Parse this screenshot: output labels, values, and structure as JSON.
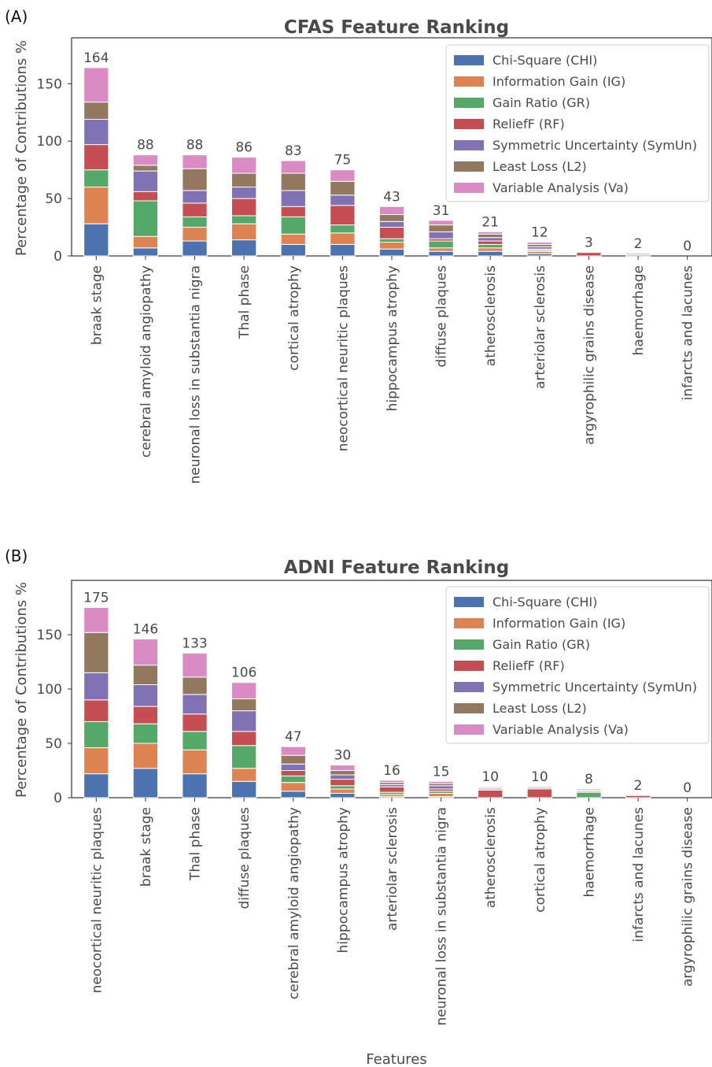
{
  "chart_data": [
    {
      "type": "bar",
      "stacked": true,
      "panel": "(A)",
      "title": "CFAS Feature Ranking",
      "ylabel": "Percentage of Contributions %",
      "xlabel": "",
      "ylim": [
        0,
        190
      ],
      "yticks": [
        0,
        50,
        100,
        150
      ],
      "grid": false,
      "legend_position": "top-right",
      "categories": [
        "braak stage",
        "cerebral amyloid angiopathy",
        "neuronal loss in substantia nigra",
        "Thal phase",
        "cortical atrophy",
        "neocortical neuritic plaques",
        "hippocampus atrophy",
        "diffuse plaques",
        "atherosclerosis",
        "arteriolar sclerosis",
        "argyrophilic grains disease",
        "haemorrhage",
        "infarcts and lacunes"
      ],
      "totals": [
        "164",
        "88",
        "88",
        "86",
        "83",
        "75",
        "43",
        "31",
        "21",
        "12",
        "3",
        "2",
        "0"
      ],
      "series": [
        {
          "name": "Chi-Square (CHI)",
          "color": "#4c72b0",
          "values": [
            28,
            7,
            13,
            14,
            10,
            10,
            6,
            4,
            4,
            2,
            0,
            0,
            0
          ]
        },
        {
          "name": "Information Gain (IG)",
          "color": "#dd8452",
          "values": [
            32,
            10,
            12,
            14,
            9,
            10,
            6,
            3,
            3,
            2,
            0,
            0,
            0
          ]
        },
        {
          "name": "Gain Ratio (GR)",
          "color": "#55a868",
          "values": [
            15,
            31,
            9,
            7,
            15,
            7,
            3,
            6,
            3,
            1,
            0,
            1,
            0
          ]
        },
        {
          "name": "ReliefF (RF)",
          "color": "#c44e52",
          "values": [
            22,
            8,
            12,
            15,
            9,
            17,
            10,
            2,
            3,
            1,
            3,
            0,
            0
          ]
        },
        {
          "name": "Symmetric Uncertainty (SymUn)",
          "color": "#8172b3",
          "values": [
            22,
            18,
            11,
            10,
            14,
            9,
            5,
            6,
            3,
            2,
            0,
            1,
            0
          ]
        },
        {
          "name": "Least Loss (L2)",
          "color": "#937860",
          "values": [
            15,
            5,
            19,
            12,
            15,
            12,
            6,
            6,
            3,
            2,
            0,
            0,
            0
          ]
        },
        {
          "name": "Variable Analysis (Va)",
          "color": "#da8bc3",
          "values": [
            30,
            9,
            12,
            14,
            11,
            10,
            7,
            4,
            2,
            2,
            0,
            0,
            0
          ]
        }
      ]
    },
    {
      "type": "bar",
      "stacked": true,
      "panel": "(B)",
      "title": "ADNI Feature Ranking",
      "ylabel": "Percentage of Contributions %",
      "xlabel": "Features",
      "ylim": [
        0,
        200
      ],
      "yticks": [
        0,
        50,
        100,
        150
      ],
      "grid": false,
      "legend_position": "top-right",
      "categories": [
        "neocortical neuritic plaques",
        "braak stage",
        "Thal phase",
        "diffuse plaques",
        "cerebral amyloid angiopathy",
        "hippocampus atrophy",
        "arteriolar sclerosis",
        "neuronal loss in substantia nigra",
        "atherosclerosis",
        "cortical atrophy",
        "haemorrhage",
        "infarcts and lacunes",
        "argyrophilic grains disease"
      ],
      "totals": [
        "175",
        "146",
        "133",
        "106",
        "47",
        "30",
        "16",
        "15",
        "10",
        "10",
        "8",
        "2",
        "0"
      ],
      "series": [
        {
          "name": "Chi-Square (CHI)",
          "color": "#4c72b0",
          "values": [
            22,
            27,
            22,
            15,
            6,
            4,
            1,
            1,
            0,
            0,
            0,
            0,
            0
          ]
        },
        {
          "name": "Information Gain (IG)",
          "color": "#dd8452",
          "values": [
            24,
            23,
            22,
            12,
            8,
            4,
            2,
            3,
            0,
            0,
            0,
            0,
            0
          ]
        },
        {
          "name": "Gain Ratio (GR)",
          "color": "#55a868",
          "values": [
            24,
            18,
            17,
            21,
            6,
            3,
            2,
            2,
            0,
            0,
            5,
            0,
            0
          ]
        },
        {
          "name": "ReliefF (RF)",
          "color": "#c44e52",
          "values": [
            20,
            16,
            16,
            13,
            5,
            6,
            5,
            2,
            7,
            8,
            1,
            2,
            0
          ]
        },
        {
          "name": "Symmetric Uncertainty (SymUn)",
          "color": "#8172b3",
          "values": [
            25,
            20,
            18,
            19,
            6,
            4,
            2,
            3,
            1,
            1,
            1,
            0,
            0
          ]
        },
        {
          "name": "Least Loss (L2)",
          "color": "#937860",
          "values": [
            37,
            18,
            16,
            11,
            8,
            4,
            2,
            2,
            1,
            1,
            1,
            0,
            0
          ]
        },
        {
          "name": "Variable Analysis (Va)",
          "color": "#da8bc3",
          "values": [
            23,
            24,
            22,
            15,
            8,
            5,
            2,
            2,
            1,
            0,
            0,
            0,
            0
          ]
        }
      ]
    }
  ]
}
